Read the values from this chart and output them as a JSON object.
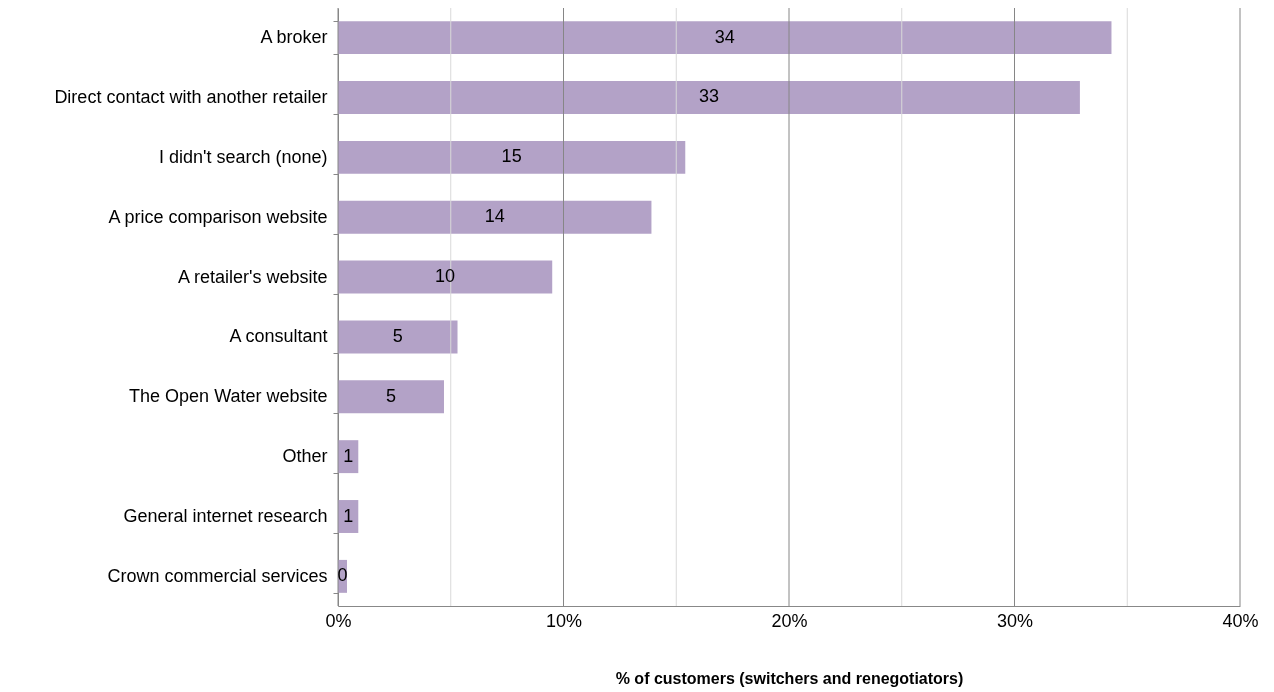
{
  "chart_data": {
    "type": "bar",
    "orientation": "horizontal",
    "xlabel": "% of customers (switchers and renegotiators)",
    "categories": [
      "A broker",
      "Direct contact with another retailer",
      "I didn't search (none)",
      "A price comparison website",
      "A retailer's website",
      "A consultant",
      "The Open Water website",
      "Other",
      "General internet research",
      "Crown commercial services"
    ],
    "values": [
      34.3,
      32.9,
      15.4,
      13.9,
      9.5,
      5.3,
      4.7,
      0.9,
      0.9,
      0.4
    ],
    "value_labels": [
      "34",
      "33",
      "15",
      "14",
      "10",
      "5",
      "5",
      "1",
      "1",
      "0"
    ],
    "color": "#b3a2c7",
    "xlim": [
      0,
      40
    ],
    "xticks": [
      {
        "value": 0,
        "label": "0%"
      },
      {
        "value": 5,
        "label": null
      },
      {
        "value": 10,
        "label": "10%"
      },
      {
        "value": 15,
        "label": null
      },
      {
        "value": 20,
        "label": "20%"
      },
      {
        "value": 25,
        "label": null
      },
      {
        "value": 30,
        "label": "30%"
      },
      {
        "value": 35,
        "label": null
      },
      {
        "value": 40,
        "label": "40%"
      }
    ],
    "grid": "x"
  }
}
